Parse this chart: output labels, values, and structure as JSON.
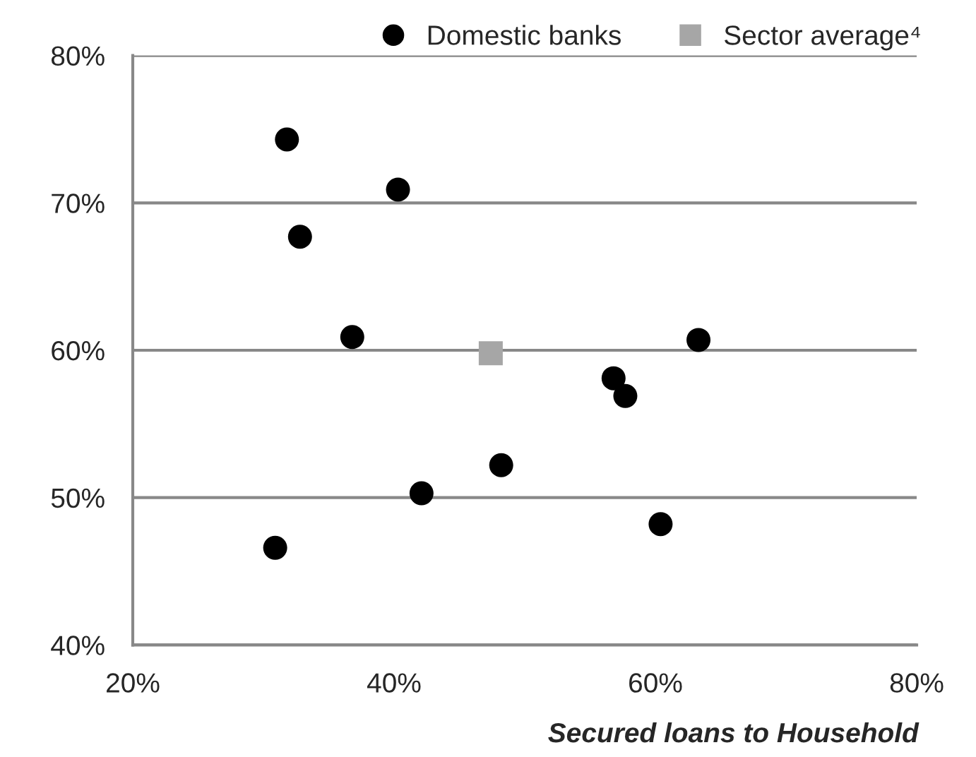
{
  "chart_data": {
    "type": "scatter",
    "xlabel": "Secured loans to Household",
    "series": [
      {
        "name": "Domestic banks",
        "color": "#000000",
        "marker": "circle",
        "x": [
          31.8,
          40.3,
          32.8,
          36.8,
          30.9,
          42.1,
          48.2,
          56.8,
          57.7,
          63.3,
          60.4
        ],
        "values": [
          74.3,
          70.9,
          67.7,
          60.9,
          46.6,
          50.3,
          52.2,
          58.1,
          56.9,
          60.7,
          48.2
        ]
      },
      {
        "name": "Sector average⁴",
        "color": "#a6a6a6",
        "marker": "square",
        "x": [
          47.4
        ],
        "values": [
          59.8
        ]
      }
    ],
    "xlim": [
      20,
      80
    ],
    "ylim": [
      40,
      80
    ],
    "xticks": [
      {
        "value": 20,
        "label": "20%"
      },
      {
        "value": 40,
        "label": "40%"
      },
      {
        "value": 60,
        "label": "60%"
      },
      {
        "value": 80,
        "label": "80%"
      }
    ],
    "yticks": [
      {
        "value": 40,
        "label": "40%"
      },
      {
        "value": 50,
        "label": "50%"
      },
      {
        "value": 60,
        "label": "60%"
      },
      {
        "value": 70,
        "label": "70%"
      },
      {
        "value": 80,
        "label": "80%"
      }
    ],
    "grid": "y",
    "legend": "top right"
  }
}
